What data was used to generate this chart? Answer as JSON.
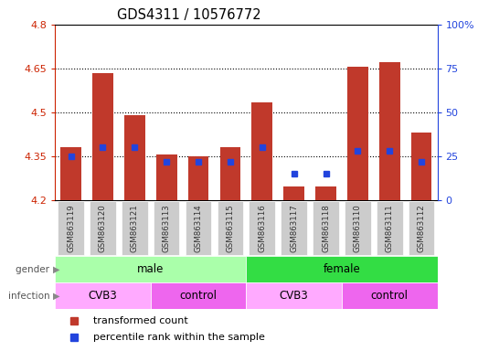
{
  "title": "GDS4311 / 10576772",
  "samples": [
    "GSM863119",
    "GSM863120",
    "GSM863121",
    "GSM863113",
    "GSM863114",
    "GSM863115",
    "GSM863116",
    "GSM863117",
    "GSM863118",
    "GSM863110",
    "GSM863111",
    "GSM863112"
  ],
  "transformed_count": [
    4.38,
    4.635,
    4.49,
    4.355,
    4.35,
    4.38,
    4.535,
    4.245,
    4.245,
    4.655,
    4.67,
    4.43
  ],
  "percentile_rank": [
    25,
    30,
    30,
    22,
    22,
    22,
    30,
    15,
    15,
    28,
    28,
    22
  ],
  "ylim_left": [
    4.2,
    4.8
  ],
  "ylim_right": [
    0,
    100
  ],
  "yticks_left": [
    4.2,
    4.35,
    4.5,
    4.65,
    4.8
  ],
  "yticks_right": [
    0,
    25,
    50,
    75,
    100
  ],
  "ytick_labels_left": [
    "4.2",
    "4.35",
    "4.5",
    "4.65",
    "4.8"
  ],
  "ytick_labels_right": [
    "0",
    "25",
    "50",
    "75",
    "100%"
  ],
  "bar_bottom": 4.2,
  "bar_color": "#C0392B",
  "dot_color": "#2244DD",
  "grid_color": "#000000",
  "gender_groups": [
    {
      "label": "male",
      "start": 0,
      "end": 6,
      "color": "#AAFFAA"
    },
    {
      "label": "female",
      "start": 6,
      "end": 12,
      "color": "#33DD44"
    }
  ],
  "infection_groups": [
    {
      "label": "CVB3",
      "start": 0,
      "end": 3,
      "color": "#FFAAFF"
    },
    {
      "label": "control",
      "start": 3,
      "end": 6,
      "color": "#EE66EE"
    },
    {
      "label": "CVB3",
      "start": 6,
      "end": 9,
      "color": "#FFAAFF"
    },
    {
      "label": "control",
      "start": 9,
      "end": 12,
      "color": "#EE66EE"
    }
  ],
  "left_label_color": "#CC2200",
  "right_label_color": "#2244DD",
  "tick_bg_color": "#CCCCCC",
  "legend_items": [
    {
      "label": "transformed count",
      "color": "#C0392B"
    },
    {
      "label": "percentile rank within the sample",
      "color": "#2244DD"
    }
  ],
  "grid_yticks": [
    4.35,
    4.5,
    4.65
  ]
}
